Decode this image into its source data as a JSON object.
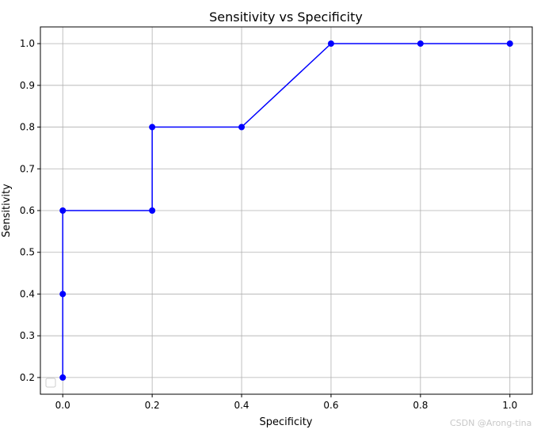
{
  "chart_data": {
    "type": "line",
    "title": "Sensitivity vs Specificity",
    "xlabel": "Specificity",
    "ylabel": "Sensitivity",
    "xlim": [
      -0.05,
      1.05
    ],
    "ylim": [
      0.16,
      1.04
    ],
    "x_ticks": [
      0.0,
      0.2,
      0.4,
      0.6,
      0.8,
      1.0
    ],
    "x_tick_labels": [
      "0.0",
      "0.2",
      "0.4",
      "0.6",
      "0.8",
      "1.0"
    ],
    "y_ticks": [
      0.2,
      0.3,
      0.4,
      0.5,
      0.6,
      0.7,
      0.8,
      0.9,
      1.0
    ],
    "y_tick_labels": [
      "0.2",
      "0.3",
      "0.4",
      "0.5",
      "0.6",
      "0.7",
      "0.8",
      "0.9",
      "1.0"
    ],
    "grid": true,
    "legend": "lower-left (empty)",
    "series": [
      {
        "color": "#0000ff",
        "marker": "circle",
        "points": [
          {
            "x": 0.0,
            "y": 0.2
          },
          {
            "x": 0.0,
            "y": 0.4
          },
          {
            "x": 0.0,
            "y": 0.6
          },
          {
            "x": 0.2,
            "y": 0.6
          },
          {
            "x": 0.2,
            "y": 0.8
          },
          {
            "x": 0.4,
            "y": 0.8
          },
          {
            "x": 0.6,
            "y": 1.0
          },
          {
            "x": 0.8,
            "y": 1.0
          },
          {
            "x": 1.0,
            "y": 1.0
          }
        ]
      }
    ]
  },
  "watermark": "CSDN @Arong-tina"
}
